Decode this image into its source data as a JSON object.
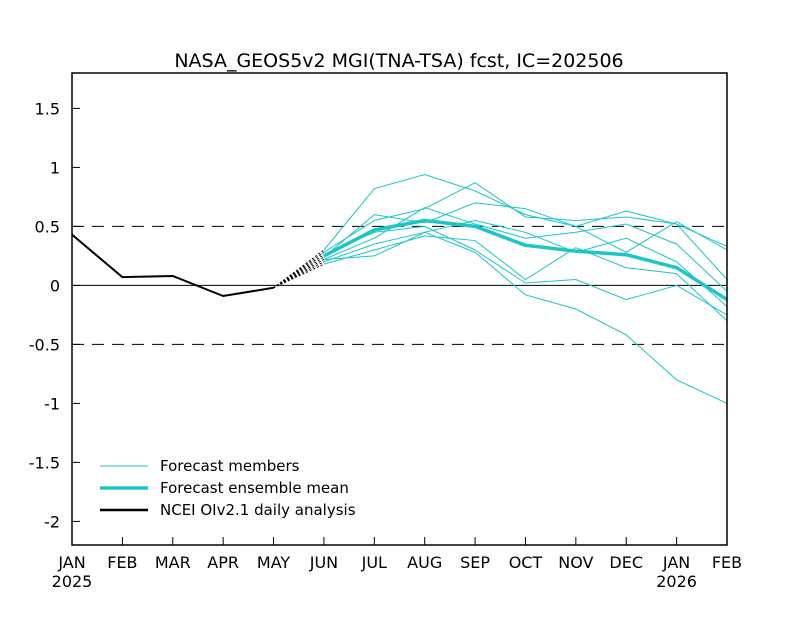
{
  "chart_data": {
    "type": "line",
    "title": "NASA_GEOS5v2 MGI(TNA-TSA) fcst, IC=202506",
    "xlabel": "",
    "ylabel": "",
    "ylim": [
      -2.2,
      1.8
    ],
    "x_tick_labels": [
      "JAN",
      "FEB",
      "MAR",
      "APR",
      "MAY",
      "JUN",
      "JUL",
      "AUG",
      "SEP",
      "OCT",
      "NOV",
      "DEC",
      "JAN",
      "FEB"
    ],
    "x_year_labels": [
      {
        "month_index": 0,
        "label": "2025"
      },
      {
        "month_index": 12,
        "label": "2026"
      }
    ],
    "y_ticks": [
      1.5,
      1,
      0.5,
      0,
      -0.5,
      -1,
      -1.5,
      -2
    ],
    "y_tick_labels": [
      "1.5",
      "1",
      "0.5",
      "0",
      "-0.5",
      "-1",
      "-1.5",
      "-2"
    ],
    "reference_lines": [
      {
        "y": 0.5,
        "style": "dashed"
      },
      {
        "y": 0,
        "style": "solid"
      },
      {
        "y": -0.5,
        "style": "dashed"
      }
    ],
    "observed": {
      "name": "NCEI OIv2.1 daily analysis",
      "color": "#000000",
      "x": [
        0,
        1,
        2,
        3,
        4
      ],
      "y": [
        0.43,
        0.07,
        0.08,
        -0.09,
        -0.02
      ]
    },
    "mean": {
      "name": "Forecast ensemble mean",
      "color": "#1cc6c6",
      "x": [
        5,
        6,
        7,
        8,
        9,
        10,
        11,
        12,
        13
      ],
      "y": [
        0.25,
        0.47,
        0.55,
        0.5,
        0.34,
        0.29,
        0.26,
        0.15,
        -0.12
      ]
    },
    "members": {
      "name": "Forecast members",
      "color": "#1cc6c6",
      "x": [
        5,
        6,
        7,
        8,
        9,
        10,
        11,
        12,
        13
      ],
      "values": [
        [
          0.3,
          0.82,
          0.94,
          0.8,
          0.6,
          0.5,
          0.63,
          0.52,
          0.33
        ],
        [
          0.28,
          0.55,
          0.65,
          0.87,
          0.58,
          0.55,
          0.58,
          0.52,
          0.05
        ],
        [
          0.24,
          0.6,
          0.53,
          0.7,
          0.65,
          0.5,
          0.28,
          0.54,
          0.3
        ],
        [
          0.22,
          0.4,
          0.66,
          0.52,
          0.4,
          0.45,
          0.52,
          0.35,
          -0.05
        ],
        [
          0.2,
          0.35,
          0.45,
          0.55,
          0.45,
          0.28,
          0.4,
          0.2,
          -0.18
        ],
        [
          0.18,
          0.3,
          0.42,
          0.38,
          0.05,
          0.32,
          0.15,
          0.1,
          -0.3
        ],
        [
          0.26,
          0.45,
          0.5,
          0.3,
          0.02,
          0.05,
          -0.12,
          0.0,
          -0.25
        ],
        [
          0.22,
          0.25,
          0.45,
          0.28,
          -0.08,
          -0.2,
          -0.42,
          -0.8,
          -1.0
        ]
      ]
    },
    "transition": {
      "from_x": 4,
      "to_x": 5,
      "from_y": -0.02,
      "to_y": [
        0.3,
        0.28,
        0.26,
        0.24,
        0.22,
        0.2,
        0.18
      ]
    },
    "legend": {
      "position": "bottom-left",
      "entries": [
        {
          "label": "Forecast members",
          "color": "#1cc6c6",
          "weight": "thin"
        },
        {
          "label": "Forecast ensemble mean",
          "color": "#1cc6c6",
          "weight": "thick"
        },
        {
          "label": "NCEI OIv2.1 daily analysis",
          "color": "#000000",
          "weight": "medium"
        }
      ]
    }
  }
}
